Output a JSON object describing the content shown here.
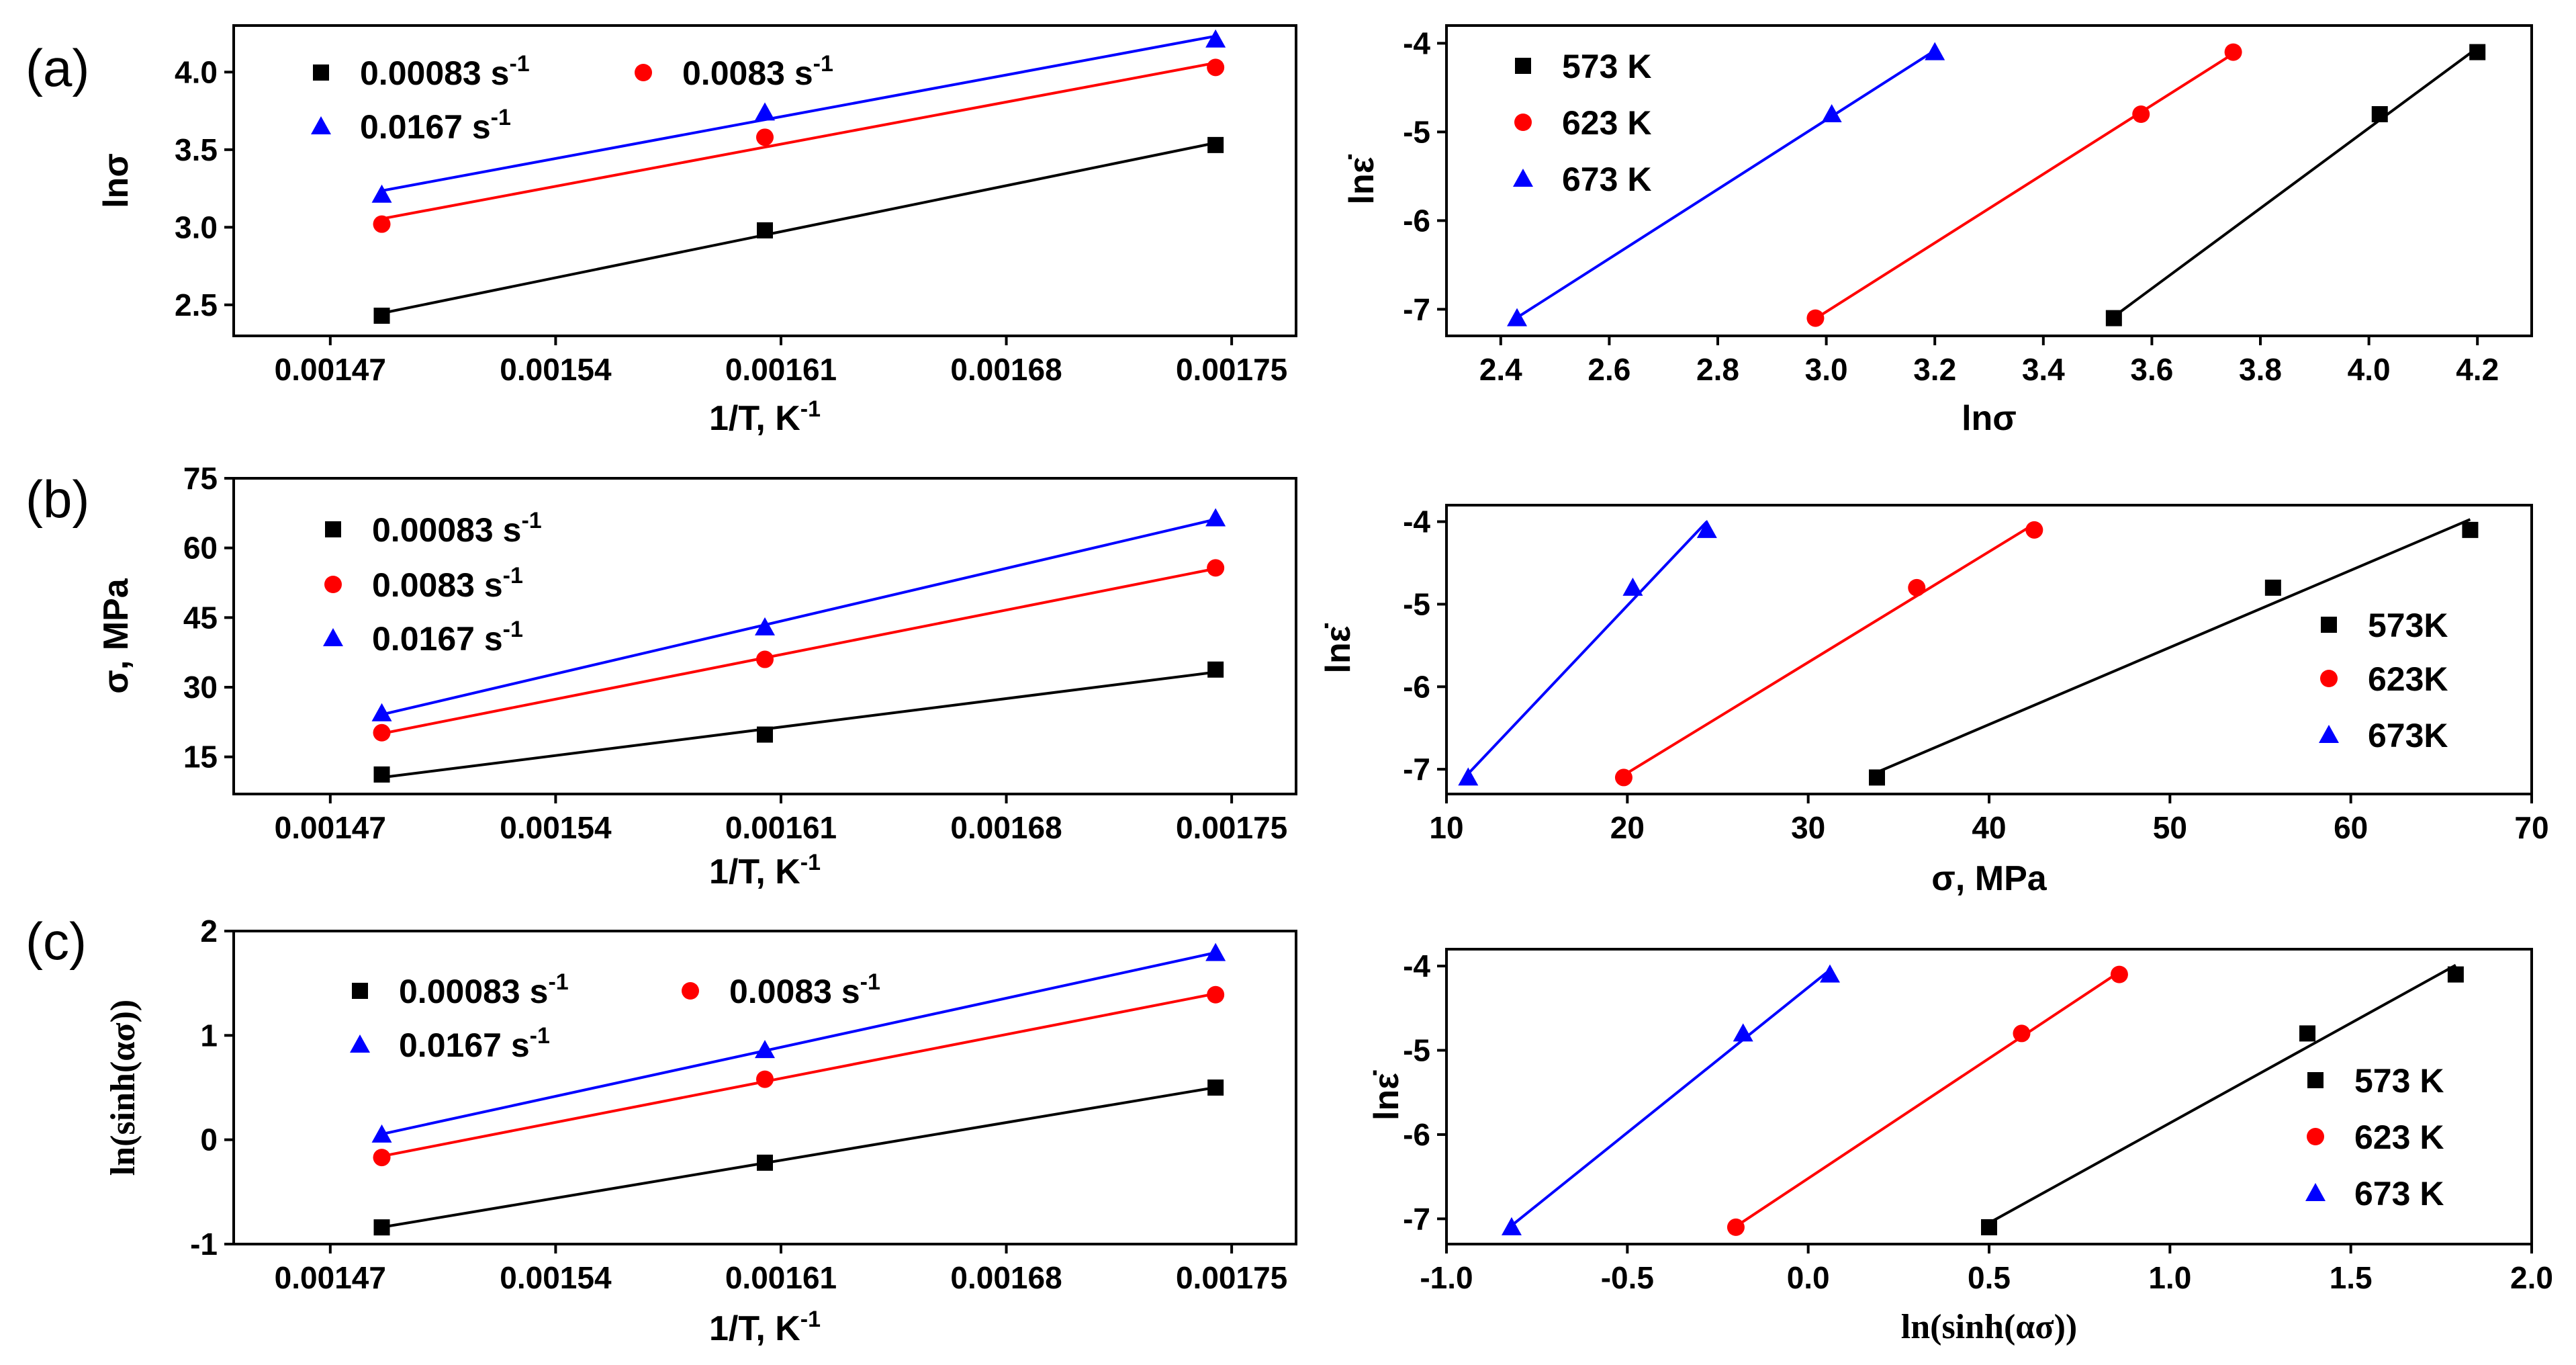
{
  "panel_labels": [
    "(a)",
    "(b)",
    "(c)"
  ],
  "colors": {
    "black": "#000000",
    "red": "#ff0000",
    "blue": "#0000ff"
  },
  "chart_data": [
    {
      "id": "a_left",
      "type": "scatter",
      "fit": "linear",
      "xlabel": "1/T, K",
      "xlabel_sup": "-1",
      "ylabel": "lnσ",
      "xlim": [
        0.00144,
        0.00177
      ],
      "ylim": [
        2.3,
        4.3
      ],
      "xticks": [
        0.00147,
        0.00154,
        0.00161,
        0.00168,
        0.00175
      ],
      "xtick_labels": [
        "0.00147",
        "0.00154",
        "0.00161",
        "0.00168",
        "0.00175"
      ],
      "yticks": [
        2.5,
        3.0,
        3.5,
        4.0
      ],
      "ytick_labels": [
        "2.5",
        "3.0",
        "3.5",
        "4.0"
      ],
      "series": [
        {
          "name": "0.00083 s",
          "sup": "-1",
          "color": "#000000",
          "marker": "square",
          "x": [
            0.001486,
            0.001605,
            0.001745
          ],
          "y": [
            2.43,
            2.98,
            3.53
          ]
        },
        {
          "name": "0.0083 s",
          "sup": "-1",
          "color": "#ff0000",
          "marker": "circle",
          "x": [
            0.001486,
            0.001605,
            0.001745
          ],
          "y": [
            3.02,
            3.58,
            4.03
          ]
        },
        {
          "name": "0.0167 s",
          "sup": "-1",
          "color": "#0000ff",
          "marker": "triangle",
          "x": [
            0.001486,
            0.001605,
            0.001745
          ],
          "y": [
            3.21,
            3.74,
            4.21
          ]
        }
      ]
    },
    {
      "id": "a_right",
      "type": "scatter",
      "fit": "linear",
      "xlabel": "lnσ",
      "ylabel": "lnε̇",
      "xlim": [
        2.3,
        4.3
      ],
      "ylim": [
        -7.3,
        -3.8
      ],
      "xticks": [
        2.4,
        2.6,
        2.8,
        3.0,
        3.2,
        3.4,
        3.6,
        3.8,
        4.0,
        4.2
      ],
      "xtick_labels": [
        "2.4",
        "2.6",
        "2.8",
        "3.0",
        "3.2",
        "3.4",
        "3.6",
        "3.8",
        "4.0",
        "4.2"
      ],
      "yticks": [
        -7,
        -6,
        -5,
        -4
      ],
      "ytick_labels": [
        "-7",
        "-6",
        "-5",
        "-4"
      ],
      "series": [
        {
          "name": "573 K",
          "color": "#000000",
          "marker": "square",
          "x": [
            3.53,
            4.02,
            4.2
          ],
          "y": [
            -7.1,
            -4.8,
            -4.1
          ]
        },
        {
          "name": "623 K",
          "color": "#ff0000",
          "marker": "circle",
          "x": [
            2.98,
            3.58,
            3.75
          ],
          "y": [
            -7.1,
            -4.8,
            -4.1
          ]
        },
        {
          "name": "673 K",
          "color": "#0000ff",
          "marker": "triangle",
          "x": [
            2.43,
            3.01,
            3.2
          ],
          "y": [
            -7.1,
            -4.8,
            -4.1
          ]
        }
      ]
    },
    {
      "id": "b_left",
      "type": "scatter",
      "fit": "linear",
      "xlabel": "1/T, K",
      "xlabel_sup": "-1",
      "ylabel": "σ, MPa",
      "xlim": [
        0.00144,
        0.00177
      ],
      "ylim": [
        7,
        75
      ],
      "xticks": [
        0.00147,
        0.00154,
        0.00161,
        0.00168,
        0.00175
      ],
      "xtick_labels": [
        "0.00147",
        "0.00154",
        "0.00161",
        "0.00168",
        "0.00175"
      ],
      "yticks": [
        15,
        30,
        45,
        60,
        75
      ],
      "ytick_labels": [
        "15",
        "30",
        "45",
        "60",
        "75"
      ],
      "series": [
        {
          "name": "0.00083 s",
          "sup": "-1",
          "color": "#000000",
          "marker": "square",
          "x": [
            0.001486,
            0.001605,
            0.001745
          ],
          "y": [
            11.2,
            19.8,
            33.8
          ]
        },
        {
          "name": "0.0083 s",
          "sup": "-1",
          "color": "#ff0000",
          "marker": "circle",
          "x": [
            0.001486,
            0.001605,
            0.001745
          ],
          "y": [
            20.2,
            36.0,
            55.7
          ]
        },
        {
          "name": "0.0167 s",
          "sup": "-1",
          "color": "#0000ff",
          "marker": "triangle",
          "x": [
            0.001486,
            0.001605,
            0.001745
          ],
          "y": [
            24.4,
            42.9,
            66.4
          ]
        }
      ]
    },
    {
      "id": "b_right",
      "type": "scatter",
      "fit": "linear",
      "xlabel": "σ, MPa",
      "ylabel": "lnε̇",
      "xlim": [
        10,
        70
      ],
      "ylim": [
        -7.3,
        -3.8
      ],
      "xticks": [
        10,
        20,
        30,
        40,
        50,
        60,
        70
      ],
      "xtick_labels": [
        "10",
        "20",
        "30",
        "40",
        "50",
        "60",
        "70"
      ],
      "yticks": [
        -7,
        -6,
        -5,
        -4
      ],
      "ytick_labels": [
        "-7",
        "-6",
        "-5",
        "-4"
      ],
      "series": [
        {
          "name": "573K",
          "color": "#000000",
          "marker": "square",
          "x": [
            33.8,
            55.7,
            66.6
          ],
          "y": [
            -7.1,
            -4.8,
            -4.1
          ]
        },
        {
          "name": "623K",
          "color": "#ff0000",
          "marker": "circle",
          "x": [
            19.8,
            36.0,
            42.5
          ],
          "y": [
            -7.1,
            -4.8,
            -4.1
          ]
        },
        {
          "name": "673K",
          "color": "#0000ff",
          "marker": "triangle",
          "x": [
            11.2,
            20.3,
            24.4
          ],
          "y": [
            -7.1,
            -4.8,
            -4.1
          ]
        }
      ]
    },
    {
      "id": "c_left",
      "type": "scatter",
      "fit": "linear",
      "xlabel": "1/T, K",
      "xlabel_sup": "-1",
      "ylabel": "ln(sinh(ασ))",
      "xlim": [
        0.00144,
        0.00177
      ],
      "ylim": [
        -1.0,
        2.0
      ],
      "xticks": [
        0.00147,
        0.00154,
        0.00161,
        0.00168,
        0.00175
      ],
      "xtick_labels": [
        "0.00147",
        "0.00154",
        "0.00161",
        "0.00168",
        "0.00175"
      ],
      "yticks": [
        -1,
        0,
        1,
        2
      ],
      "ytick_labels": [
        "-1",
        "0",
        "1",
        "2"
      ],
      "series": [
        {
          "name": "0.00083 s",
          "sup": "-1",
          "color": "#000000",
          "marker": "square",
          "x": [
            0.001486,
            0.001605,
            0.001745
          ],
          "y": [
            -0.84,
            -0.22,
            0.5
          ]
        },
        {
          "name": "0.0083 s",
          "sup": "-1",
          "color": "#ff0000",
          "marker": "circle",
          "x": [
            0.001486,
            0.001605,
            0.001745
          ],
          "y": [
            -0.17,
            0.58,
            1.39
          ]
        },
        {
          "name": "0.0167 s",
          "sup": "-1",
          "color": "#0000ff",
          "marker": "triangle",
          "x": [
            0.001486,
            0.001605,
            0.001745
          ],
          "y": [
            0.05,
            0.86,
            1.79
          ]
        }
      ]
    },
    {
      "id": "c_right",
      "type": "scatter",
      "fit": "linear",
      "xlabel": "ln(sinh(ασ))",
      "ylabel": "lnε̇",
      "xlim": [
        -1.0,
        2.0
      ],
      "ylim": [
        -7.3,
        -3.8
      ],
      "xticks": [
        -1.0,
        -0.5,
        0.0,
        0.5,
        1.0,
        1.5,
        2.0
      ],
      "xtick_labels": [
        "-1.0",
        "-0.5",
        "0.0",
        "0.5",
        "1.0",
        "1.5",
        "2.0"
      ],
      "yticks": [
        -7,
        -6,
        -5,
        -4
      ],
      "ytick_labels": [
        "-7",
        "-6",
        "-5",
        "-4"
      ],
      "series": [
        {
          "name": "573 K",
          "color": "#000000",
          "marker": "square",
          "x": [
            0.5,
            1.38,
            1.79
          ],
          "y": [
            -7.1,
            -4.8,
            -4.1
          ]
        },
        {
          "name": "623 K",
          "color": "#ff0000",
          "marker": "circle",
          "x": [
            -0.2,
            0.59,
            0.86
          ],
          "y": [
            -7.1,
            -4.8,
            -4.1
          ]
        },
        {
          "name": "673 K",
          "color": "#0000ff",
          "marker": "triangle",
          "x": [
            -0.82,
            -0.18,
            0.06
          ],
          "y": [
            -7.1,
            -4.8,
            -4.1
          ]
        }
      ]
    }
  ]
}
